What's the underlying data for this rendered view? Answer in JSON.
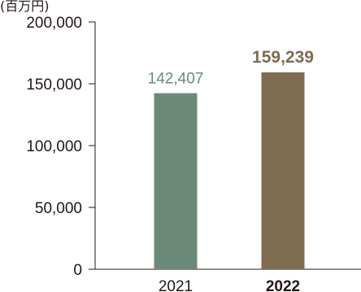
{
  "chart_data": {
    "type": "bar",
    "title": "",
    "unit_label": "(百万円)",
    "xlabel": "",
    "ylabel": "",
    "categories": [
      "2021",
      "2022"
    ],
    "values": [
      142407,
      159239
    ],
    "value_labels": [
      "142,407",
      "159,239"
    ],
    "ylim": [
      0,
      200000
    ],
    "yticks": [
      0,
      50000,
      100000,
      150000,
      200000
    ],
    "ytick_labels": [
      "0",
      "50,000",
      "100,000",
      "150,000",
      "200,000"
    ],
    "grid": false,
    "legend": "none",
    "highlight_index": 1,
    "colors": {
      "bars": [
        "#6b8a7a",
        "#7f6b4f"
      ],
      "value_labels": [
        "#6b8a7a",
        "#7f6b4f"
      ],
      "axis": "#231815",
      "text": "#231815"
    }
  }
}
